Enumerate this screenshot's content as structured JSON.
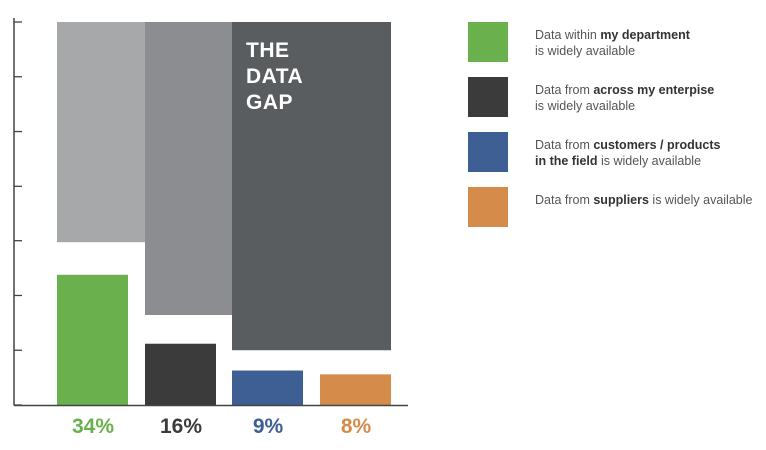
{
  "chart_data": {
    "type": "bar",
    "title": "THE DATA GAP",
    "title_lines": [
      "THE",
      "DATA",
      "GAP"
    ],
    "categories": [
      "Data within my department is widely available",
      "Data from across my enterpise is widely available",
      "Data from customers / products in the field is widely available",
      "Data from suppliers is widely available"
    ],
    "values": [
      34,
      16,
      9,
      8
    ],
    "value_labels": [
      "34%",
      "16%",
      "9%",
      "8%"
    ],
    "ylim": [
      0,
      100
    ],
    "y_ticks": [
      0,
      14.3,
      28.6,
      42.9,
      57.1,
      71.4,
      85.7,
      100
    ],
    "y_tick_labels_visible": false,
    "gap_band_tops": [
      100,
      100,
      100,
      100
    ],
    "gap_band_tiers": [
      {
        "from": 0,
        "to": 42.5
      },
      {
        "from": 1,
        "to": 23.5
      },
      {
        "from": 2,
        "to": 21.8
      },
      {
        "from": 2,
        "to": 14.3
      }
    ],
    "gap_colors": [
      "#a7a8aa",
      "#8b8d90",
      "#6d7073",
      "#5a5d60"
    ],
    "colors": [
      "#6ab04c",
      "#3b3b3b",
      "#3e5f94",
      "#d58c4a"
    ],
    "xlabel": "",
    "ylabel": "",
    "legend_position": "right"
  },
  "legend": [
    {
      "pre": "Data within ",
      "bold": "my department",
      "mid": "",
      "post": "is widely available",
      "color": "#6ab04c"
    },
    {
      "pre": "Data from ",
      "bold": "across my enterpise",
      "mid": "",
      "post": "is widely available",
      "color": "#3b3b3b"
    },
    {
      "pre": "Data from ",
      "bold": "customers / products",
      "mid": "in the field",
      "post": " is widely available",
      "color": "#3e5f94"
    },
    {
      "pre": "Data from ",
      "bold": "suppliers",
      "mid": "",
      "post": " is widely available",
      "color": "#d58c4a"
    }
  ]
}
